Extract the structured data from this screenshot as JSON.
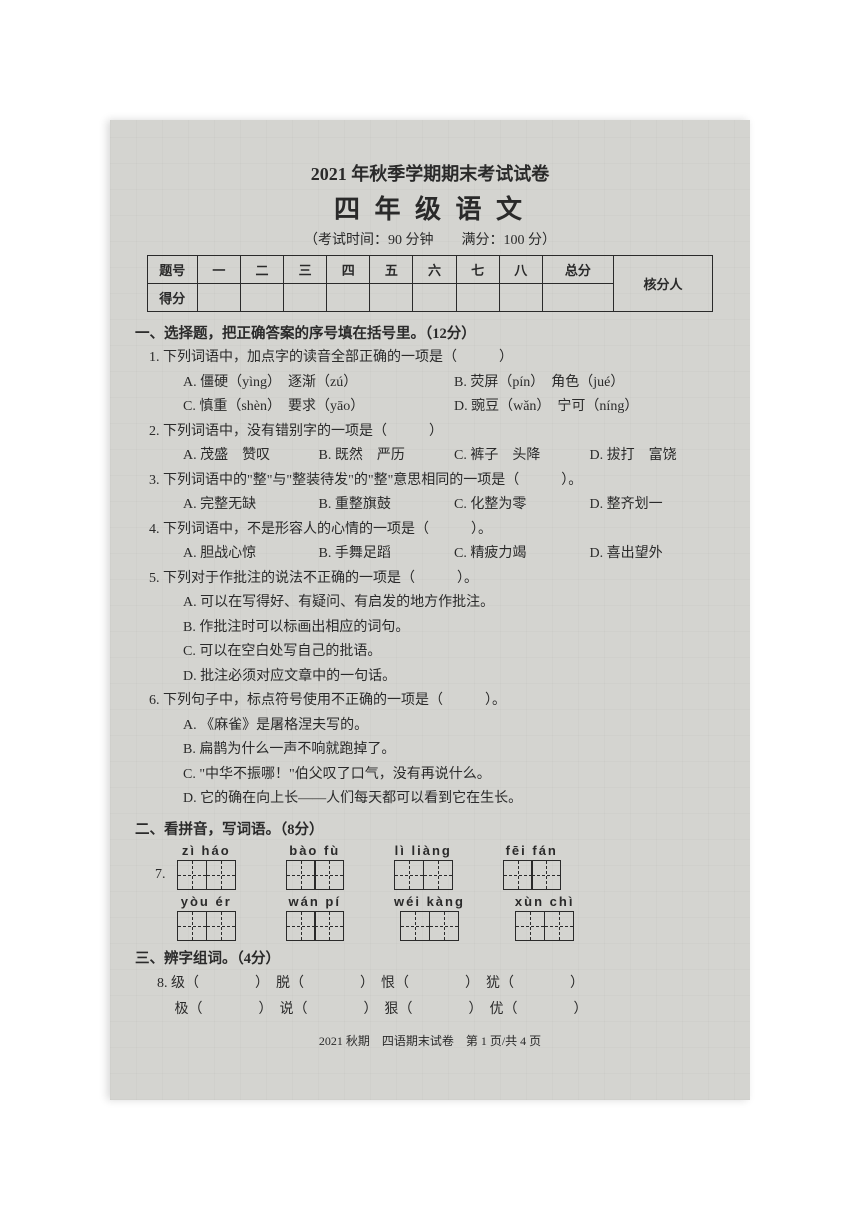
{
  "header": {
    "title_line1": "2021 年秋季学期期末考试试卷",
    "title_line2": "四 年 级 语 文",
    "info": "（考试时间：90 分钟　　满分：100 分）"
  },
  "score_table": {
    "row1": [
      "题号",
      "一",
      "二",
      "三",
      "四",
      "五",
      "六",
      "七",
      "八",
      "总分",
      "核分人"
    ],
    "row2_label": "得分"
  },
  "s1": {
    "title": "一、选择题，把正确答案的序号填在括号里。（12分）",
    "q1": {
      "stem": "1. 下列词语中，加点字的读音全部正确的一项是（　　　）",
      "a": "A. 僵硬（yìng）　逐渐（zú）",
      "b": "B. 荧屏（pín）　角色（jué）",
      "c": "C. 慎重（shèn）　要求（yāo）",
      "d": "D. 豌豆（wǎn）　宁可（níng）"
    },
    "q2": {
      "stem": "2. 下列词语中，没有错别字的一项是（　　　）",
      "a": "A. 茂盛　赞叹",
      "b": "B. 既然　严历",
      "c": "C. 裤子　头降",
      "d": "D. 拔打　富饶"
    },
    "q3": {
      "stem": "3. 下列词语中的\"整\"与\"整装待发\"的\"整\"意思相同的一项是（　　　）。",
      "a": "A. 完整无缺",
      "b": "B. 重整旗鼓",
      "c": "C. 化整为零",
      "d": "D. 整齐划一"
    },
    "q4": {
      "stem": "4. 下列词语中，不是形容人的心情的一项是（　　　）。",
      "a": "A. 胆战心惊",
      "b": "B. 手舞足蹈",
      "c": "C. 精疲力竭",
      "d": "D. 喜出望外"
    },
    "q5": {
      "stem": "5. 下列对于作批注的说法不正确的一项是（　　　）。",
      "a": "A. 可以在写得好、有疑问、有启发的地方作批注。",
      "b": "B. 作批注时可以标画出相应的词句。",
      "c": "C. 可以在空白处写自己的批语。",
      "d": "D. 批注必须对应文章中的一句话。"
    },
    "q6": {
      "stem": "6. 下列句子中，标点符号使用不正确的一项是（　　　）。",
      "a": "A. 《麻雀》是屠格涅夫写的。",
      "b": "B. 扁鹊为什么一声不响就跑掉了。",
      "c": "C. \"中华不振哪！\"伯父叹了口气，没有再说什么。",
      "d": "D. 它的确在向上长——人们每天都可以看到它在生长。"
    }
  },
  "s2": {
    "title": "二、看拼音，写词语。（8分）",
    "num": "7.",
    "row1": [
      "zì  háo",
      "bào fù",
      "lì  liàng",
      "fēi fán"
    ],
    "row2": [
      "yòu  ér",
      "wán pí",
      "wéi kàng",
      "xùn chì"
    ]
  },
  "s3": {
    "title": "三、辨字组词。（4分）",
    "line1": "8. 级（　　　　）　脱（　　　　）　恨（　　　　）　犹（　　　　）",
    "line2": "　 极（　　　　）　说（　　　　）　狠（　　　　）　优（　　　　）"
  },
  "footer": "2021 秋期　四语期末试卷　第 1 页/共 4 页"
}
